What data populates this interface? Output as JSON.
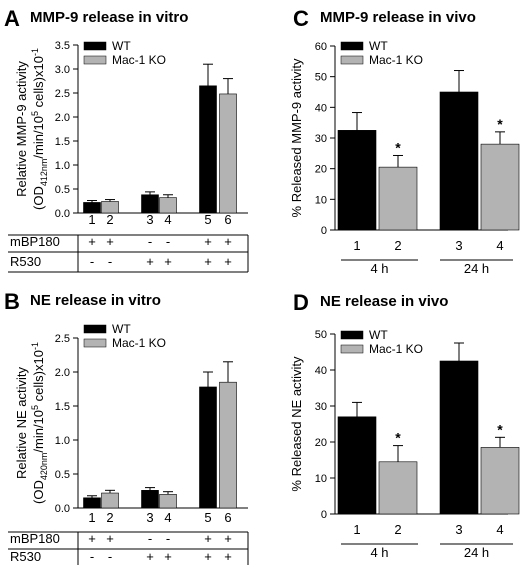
{
  "chart_data": [
    {
      "panel": "A",
      "title": "MMP-9 release in vitro",
      "type": "bar",
      "ylabel_parts": [
        "Relative MMP-9 activity",
        "(OD",
        "412nm",
        "/min/10",
        "5",
        " cells)x10",
        "-1"
      ],
      "ylim": [
        0,
        3.5
      ],
      "yticks": [
        "0.0",
        "0.5",
        "1.0",
        "1.5",
        "2.0",
        "2.5",
        "3.0",
        "3.5"
      ],
      "series": [
        {
          "name": "WT",
          "color": "#000000"
        },
        {
          "name": "Mac-1 KO",
          "color": "#b3b3b3"
        }
      ],
      "bars": [
        {
          "label": "1",
          "series": 0,
          "value": 0.22,
          "err": 0.04
        },
        {
          "label": "2",
          "series": 1,
          "value": 0.24,
          "err": 0.04
        },
        {
          "label": "3",
          "series": 0,
          "value": 0.38,
          "err": 0.06
        },
        {
          "label": "4",
          "series": 1,
          "value": 0.32,
          "err": 0.06
        },
        {
          "label": "5",
          "series": 0,
          "value": 2.65,
          "err": 0.45
        },
        {
          "label": "6",
          "series": 1,
          "value": 2.48,
          "err": 0.32
        }
      ],
      "treatments": [
        {
          "name": "mBP180",
          "signs": [
            "+",
            "+",
            "-",
            "-",
            "+",
            "+"
          ]
        },
        {
          "name": "R530",
          "signs": [
            "-",
            "-",
            "+",
            "+",
            "+",
            "+"
          ]
        }
      ]
    },
    {
      "panel": "B",
      "title": "NE release in vitro",
      "type": "bar",
      "ylabel_parts": [
        "Relative NE activity",
        "(OD",
        "420nm",
        "/min/10",
        "5",
        " cells)x10",
        "-1"
      ],
      "ylim": [
        0,
        2.5
      ],
      "yticks": [
        "0.0",
        "0.5",
        "1.0",
        "1.5",
        "2.0",
        "2.5"
      ],
      "series": [
        {
          "name": "WT",
          "color": "#000000"
        },
        {
          "name": "Mac-1 KO",
          "color": "#b3b3b3"
        }
      ],
      "bars": [
        {
          "label": "1",
          "series": 0,
          "value": 0.15,
          "err": 0.03
        },
        {
          "label": "2",
          "series": 1,
          "value": 0.22,
          "err": 0.04
        },
        {
          "label": "3",
          "series": 0,
          "value": 0.26,
          "err": 0.04
        },
        {
          "label": "4",
          "series": 1,
          "value": 0.2,
          "err": 0.04
        },
        {
          "label": "5",
          "series": 0,
          "value": 1.78,
          "err": 0.22
        },
        {
          "label": "6",
          "series": 1,
          "value": 1.85,
          "err": 0.3
        }
      ],
      "treatments": [
        {
          "name": "mBP180",
          "signs": [
            "+",
            "+",
            "-",
            "-",
            "+",
            "+"
          ]
        },
        {
          "name": "R530",
          "signs": [
            "-",
            "-",
            "+",
            "+",
            "+",
            "+"
          ]
        }
      ]
    },
    {
      "panel": "C",
      "title": "MMP-9 release in vivo",
      "type": "bar",
      "ylabel": "% Released MMP-9 activity",
      "ylim": [
        0,
        60
      ],
      "yticks": [
        "0",
        "10",
        "20",
        "30",
        "40",
        "50",
        "60"
      ],
      "series": [
        {
          "name": "WT",
          "color": "#000000"
        },
        {
          "name": "Mac-1 KO",
          "color": "#b3b3b3"
        }
      ],
      "bars": [
        {
          "label": "1",
          "series": 0,
          "value": 32.5,
          "err": 5.8
        },
        {
          "label": "2",
          "series": 1,
          "value": 20.5,
          "err": 3.8,
          "star": "*"
        },
        {
          "label": "3",
          "series": 0,
          "value": 45.0,
          "err": 7.0
        },
        {
          "label": "4",
          "series": 1,
          "value": 28.0,
          "err": 4.0,
          "star": "*"
        }
      ],
      "groups": [
        "4 h",
        "24 h"
      ]
    },
    {
      "panel": "D",
      "title": "NE release in vivo",
      "type": "bar",
      "ylabel": "% Released NE activity",
      "ylim": [
        0,
        50
      ],
      "yticks": [
        "0",
        "10",
        "20",
        "30",
        "40",
        "50"
      ],
      "series": [
        {
          "name": "WT",
          "color": "#000000"
        },
        {
          "name": "Mac-1 KO",
          "color": "#b3b3b3"
        }
      ],
      "bars": [
        {
          "label": "1",
          "series": 0,
          "value": 27.0,
          "err": 4.0
        },
        {
          "label": "2",
          "series": 1,
          "value": 14.5,
          "err": 4.5,
          "star": "*"
        },
        {
          "label": "3",
          "series": 0,
          "value": 42.5,
          "err": 5.0
        },
        {
          "label": "4",
          "series": 1,
          "value": 18.5,
          "err": 2.8,
          "star": "*"
        }
      ],
      "groups": [
        "4 h",
        "24 h"
      ]
    }
  ]
}
